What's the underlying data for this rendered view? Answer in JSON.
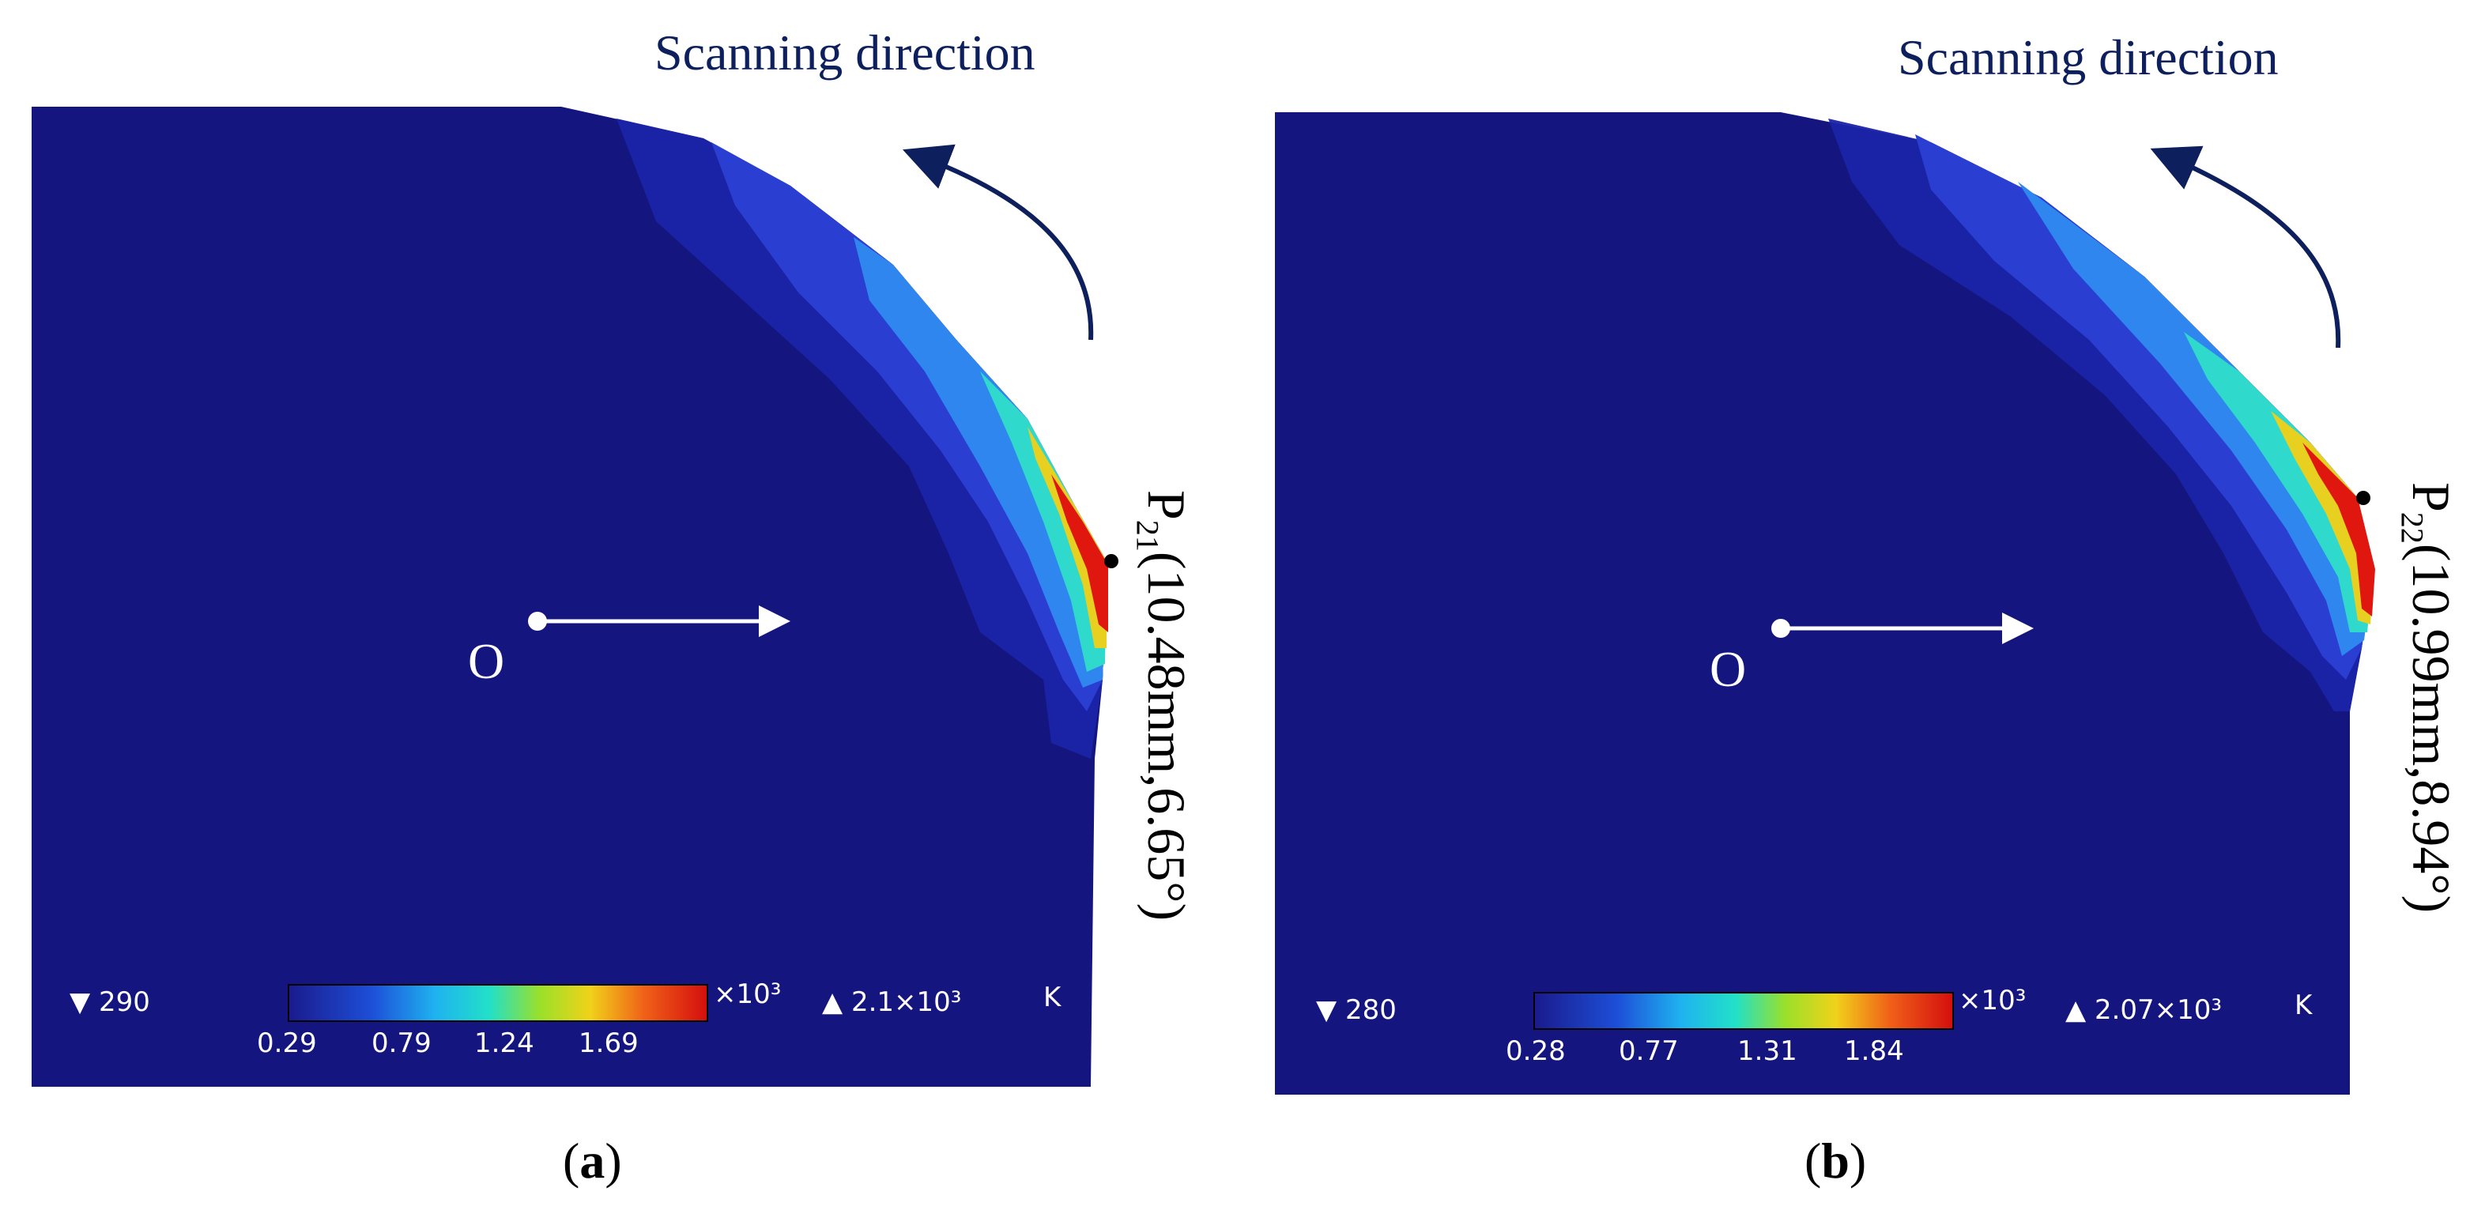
{
  "scan_label": "Scanning direction",
  "colors": {
    "background_field": "#14157e",
    "arrow": "#0d1f5c",
    "hot": "#e0170e"
  },
  "panels": [
    {
      "caption_letter": "a",
      "point_name": "P",
      "point_sub": "21",
      "point_coords": "(10.48mm,6.65°)",
      "origin_label": "O",
      "colorbar": {
        "min_label": "▼ 290",
        "max_label": "▲ 2.1×10³",
        "scale": "×10³",
        "unit": "K",
        "ticks": [
          "0.29",
          "0.79",
          "1.24",
          "1.69"
        ]
      }
    },
    {
      "caption_letter": "b",
      "point_name": "P",
      "point_sub": "22",
      "point_coords": "(10.99mm,8.94°)",
      "origin_label": "O",
      "colorbar": {
        "min_label": "▼ 280",
        "max_label": "▲ 2.07×10³",
        "scale": "×10³",
        "unit": "K",
        "ticks": [
          "0.28",
          "0.77",
          "1.31",
          "1.84"
        ]
      }
    }
  ]
}
